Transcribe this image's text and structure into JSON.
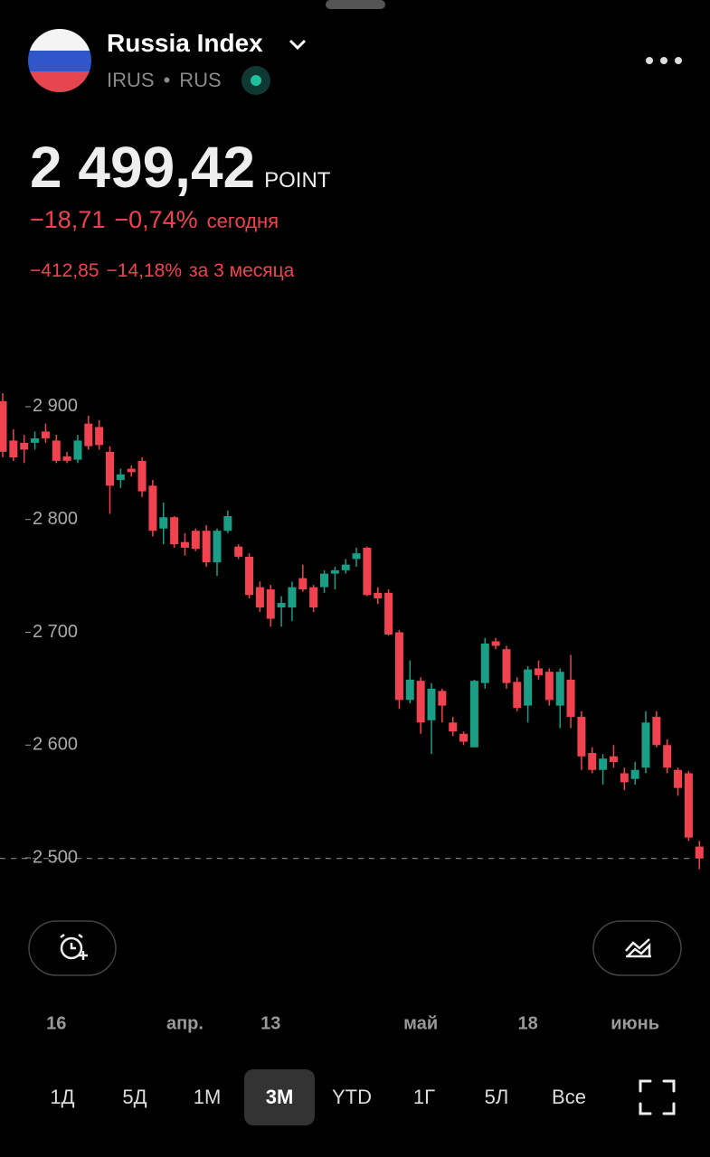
{
  "header": {
    "name": "Russia Index",
    "ticker": "IRUS",
    "separator": "•",
    "exchange": "RUS",
    "price": "2 499,42",
    "unit": "POINT",
    "day_change": "−18,71",
    "day_change_pct": "−0,74%",
    "day_label": "сегодня",
    "period_change": "−412,85",
    "period_change_pct": "−14,18%",
    "period_label": "за 3 месяца"
  },
  "chart_data": {
    "type": "candlestick",
    "x": [
      null,
      null,
      null,
      null,
      null,
      null,
      null,
      null,
      null,
      null,
      null,
      null,
      null,
      null,
      null,
      null,
      null,
      null,
      null,
      null,
      null,
      null,
      null,
      null,
      null,
      null,
      null,
      null,
      null,
      null,
      null,
      null,
      null,
      null,
      null,
      null,
      null,
      null,
      null,
      null,
      null,
      null,
      null,
      null,
      null,
      null,
      null,
      null,
      null,
      null,
      null,
      null,
      null,
      null,
      null,
      null,
      null,
      null,
      null,
      null,
      null,
      null,
      null,
      null,
      null,
      null
    ],
    "open": [
      2905,
      2870,
      2868,
      2868,
      2878,
      2870,
      2856,
      2853,
      2885,
      2882,
      2860,
      2835,
      2845,
      2852,
      2830,
      2792,
      2802,
      2780,
      2790,
      2790,
      2762,
      2790,
      2776,
      2767,
      2740,
      2738,
      2722,
      2722,
      2748,
      2740,
      2740,
      2752,
      2755,
      2765,
      2775,
      2735,
      2735,
      2700,
      2640,
      2657,
      2622,
      2648,
      2620,
      2610,
      2598,
      2655,
      2692,
      2685,
      2656,
      2635,
      2668,
      2665,
      2635,
      2658,
      2625,
      2593,
      2578,
      2590,
      2575,
      2570,
      2580,
      2625,
      2600,
      2578,
      2575,
      2510
    ],
    "high": [
      2912,
      2880,
      2875,
      2878,
      2885,
      2875,
      2860,
      2875,
      2892,
      2888,
      2865,
      2845,
      2848,
      2855,
      2835,
      2815,
      2803,
      2788,
      2792,
      2795,
      2792,
      2808,
      2778,
      2770,
      2745,
      2742,
      2732,
      2745,
      2760,
      2742,
      2755,
      2758,
      2765,
      2775,
      2776,
      2740,
      2738,
      2702,
      2675,
      2660,
      2655,
      2650,
      2625,
      2612,
      2658,
      2695,
      2695,
      2688,
      2660,
      2670,
      2675,
      2668,
      2668,
      2680,
      2630,
      2598,
      2592,
      2600,
      2580,
      2585,
      2630,
      2630,
      2605,
      2580,
      2577,
      2515
    ],
    "low": [
      2855,
      2852,
      2850,
      2862,
      2868,
      2850,
      2850,
      2850,
      2862,
      2862,
      2805,
      2828,
      2838,
      2820,
      2785,
      2778,
      2775,
      2768,
      2772,
      2758,
      2750,
      2788,
      2765,
      2730,
      2718,
      2705,
      2705,
      2710,
      2736,
      2718,
      2735,
      2738,
      2752,
      2758,
      2732,
      2725,
      2697,
      2632,
      2637,
      2610,
      2592,
      2620,
      2608,
      2600,
      2598,
      2650,
      2685,
      2650,
      2630,
      2620,
      2658,
      2635,
      2615,
      2615,
      2578,
      2575,
      2565,
      2580,
      2560,
      2565,
      2575,
      2598,
      2575,
      2555,
      2515,
      2490
    ],
    "close": [
      2860,
      2855,
      2862,
      2872,
      2872,
      2852,
      2852,
      2870,
      2865,
      2866,
      2830,
      2840,
      2842,
      2825,
      2790,
      2802,
      2778,
      2775,
      2774,
      2762,
      2790,
      2803,
      2767,
      2733,
      2722,
      2712,
      2726,
      2740,
      2738,
      2722,
      2752,
      2755,
      2760,
      2770,
      2733,
      2730,
      2698,
      2640,
      2658,
      2620,
      2650,
      2635,
      2612,
      2603,
      2657,
      2690,
      2688,
      2655,
      2633,
      2667,
      2662,
      2640,
      2665,
      2625,
      2590,
      2578,
      2588,
      2585,
      2567,
      2578,
      2620,
      2600,
      2580,
      2562,
      2518,
      2499.42
    ],
    "up_color": "#1a9e86",
    "down_color": "#f0434f",
    "ylim": [
      2480,
      2920
    ],
    "yticks": [
      {
        "value": 2500,
        "label": "2 500"
      },
      {
        "value": 2600,
        "label": "2 600"
      },
      {
        "value": 2700,
        "label": "2 700"
      },
      {
        "value": 2800,
        "label": "2 800"
      },
      {
        "value": 2900,
        "label": "2 900"
      }
    ],
    "xticks": [
      {
        "value": 5,
        "label": "16"
      },
      {
        "value": 17,
        "label": "апр."
      },
      {
        "value": 25,
        "label": "13"
      },
      {
        "value": 39,
        "label": "май"
      },
      {
        "value": 49,
        "label": "18"
      },
      {
        "value": 59,
        "label": "июнь"
      }
    ]
  },
  "periods": {
    "options": [
      "1Д",
      "5Д",
      "1М",
      "3М",
      "YTD",
      "1Г",
      "5Л",
      "Все"
    ],
    "selected": 3
  }
}
